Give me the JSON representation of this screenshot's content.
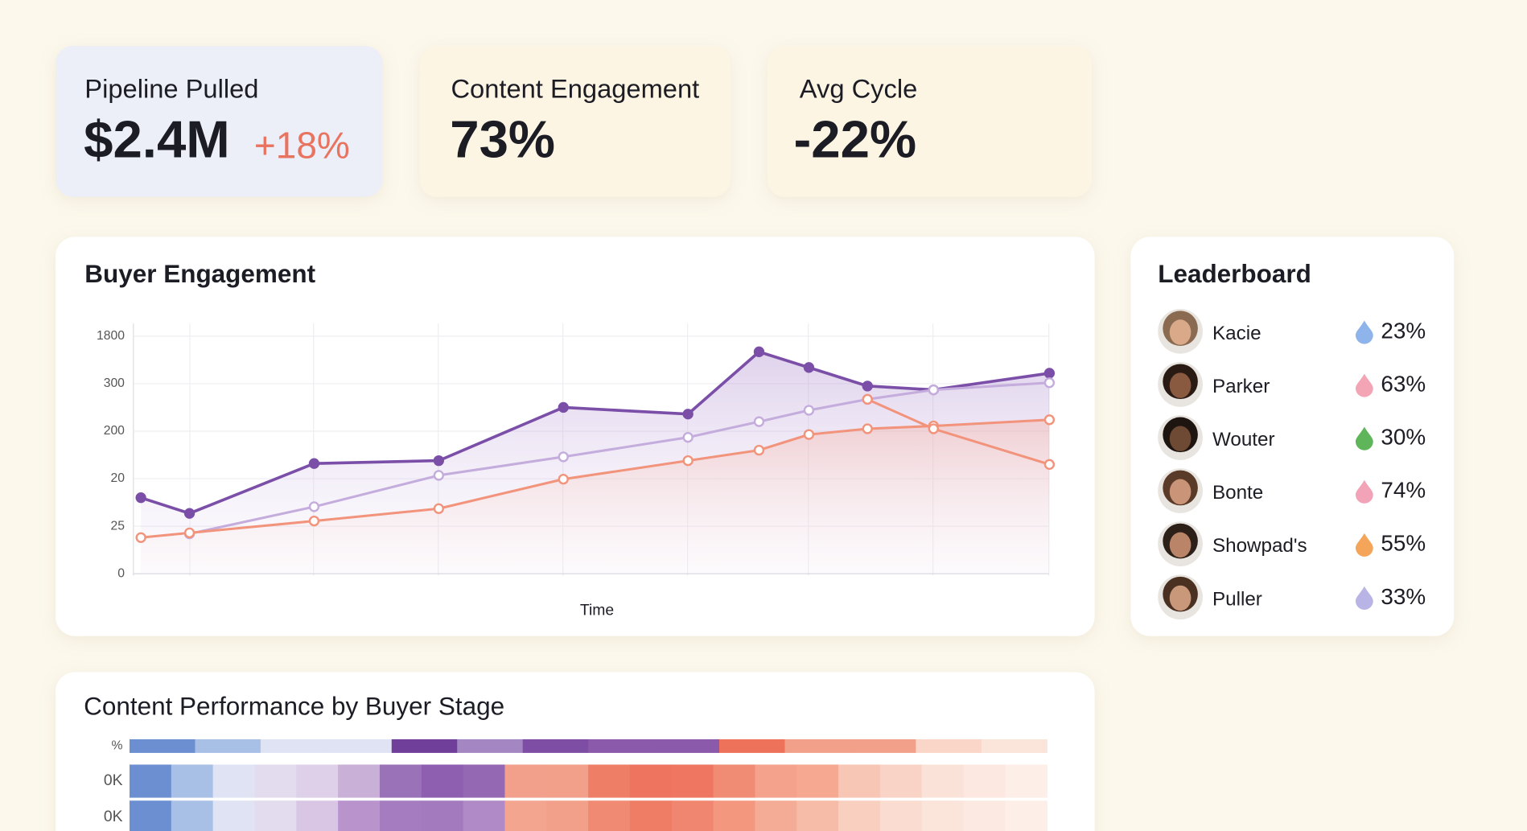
{
  "kpis": [
    {
      "label": "Pipeline Pulled",
      "value": "$2.4M",
      "delta": "+18%"
    },
    {
      "label": "Content Engagement",
      "value": "73%"
    },
    {
      "label": "Avg Cycle",
      "value": "-22%"
    }
  ],
  "chart_data": {
    "type": "line",
    "title": "Buyer Engagement",
    "xlabel": "Time",
    "x": [
      0.06,
      0.45,
      1.45,
      2.45,
      3.45,
      4.45,
      5.02,
      5.42,
      5.89,
      6.42,
      7.35
    ],
    "xlim": [
      0,
      7.4
    ],
    "ylim": [
      0,
      5
    ],
    "yticks": [
      0,
      {
        "value": 1,
        "label": "25"
      },
      {
        "value": 2,
        "label": "20"
      },
      {
        "value": 3,
        "label": "200"
      },
      {
        "value": 4,
        "label": "300"
      },
      {
        "value": 5,
        "label": "1800"
      }
    ],
    "grid": true,
    "series": [
      {
        "color": "#7b4fa8",
        "values": [
          1.6,
          1.27,
          2.32,
          2.38,
          3.5,
          3.36,
          4.67,
          4.34,
          3.95,
          3.87,
          4.22
        ]
      },
      {
        "color": "#c4acdc",
        "values": [
          null,
          0.84,
          1.41,
          2.07,
          2.46,
          2.87,
          3.2,
          3.44,
          3.67,
          3.87,
          4.02
        ]
      },
      {
        "color": "#f2937c",
        "values": [
          0.76,
          0.86,
          1.11,
          1.37,
          1.99,
          2.38,
          2.6,
          2.93,
          3.05,
          3.11,
          3.24
        ]
      },
      {
        "color": "#f2937c",
        "values": [
          null,
          null,
          null,
          null,
          null,
          null,
          null,
          null,
          3.67,
          3.05,
          2.3
        ]
      }
    ]
  },
  "leaderboard": {
    "title": "Leaderboard",
    "rows": [
      {
        "name": "Kacie",
        "share": "23%",
        "color": "#8fb4ec"
      },
      {
        "name": "Parker",
        "share": "63%",
        "color": "#f4a5b5"
      },
      {
        "name": "Wouter",
        "share": "30%",
        "color": "#5fb55a"
      },
      {
        "name": "Bonte",
        "share": "74%",
        "color": "#f3a3b8"
      },
      {
        "name": "Showpad's",
        "share": "55%",
        "color": "#f4a55a"
      },
      {
        "name": "Puller",
        "share": "33%",
        "color": "#b8b4e6"
      }
    ]
  },
  "heatmap": {
    "title": "Content Performance by Buyer Stage",
    "rows": [
      {
        "label": "%",
        "cells": [
          "#6b8fd0",
          "#a9c0e6",
          "#dfe3f4",
          "#dfe3f4",
          "#6f3f9a",
          "#a487c2",
          "#7e4ea5",
          "#8c5aaa",
          "#8c5aaa",
          "#ee7159",
          "#f3a08a",
          "#f3a08a",
          "#f9d6c8",
          "#fbe4da"
        ]
      },
      {
        "label": "0K",
        "cells": [
          "#6b8fd0",
          "#a9c0e6",
          "#dfe3f4",
          "#e3dcef",
          "#ddd0e8",
          "#c9b0d6",
          "#9a72b8",
          "#8e5fb0",
          "#9468b2",
          "#f2a08c",
          "#f3a08a",
          "#ef7e66",
          "#ef7460",
          "#ef7660",
          "#f18c74",
          "#f4a28c",
          "#f6a890",
          "#f8c6b4",
          "#f9d4c6",
          "#fbe2d8",
          "#fce8e0",
          "#fdeee8"
        ]
      },
      {
        "label": "0K",
        "cells": [
          "#6b8fd0",
          "#a9c0e6",
          "#dfe3f4",
          "#e3dcef",
          "#d8c6e4",
          "#b994cc",
          "#a67cc0",
          "#a47abf",
          "#b08ac6",
          "#f3a590",
          "#f3a08a",
          "#f18a72",
          "#ef7c64",
          "#f08570",
          "#f3987f",
          "#f5ac96",
          "#f7bca8",
          "#f9cfc0",
          "#fadcd0",
          "#fbe4da",
          "#fce9e2",
          "#fdeee8"
        ]
      }
    ]
  }
}
